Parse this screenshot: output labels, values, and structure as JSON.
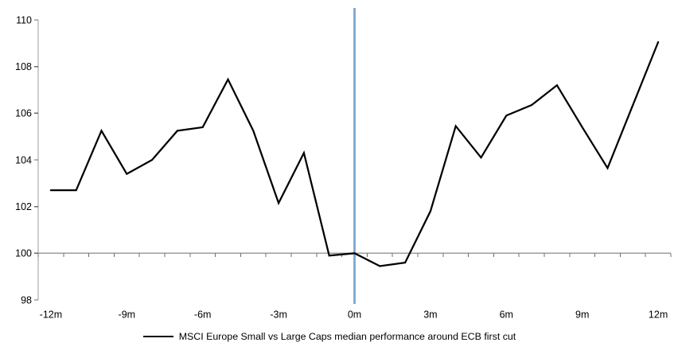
{
  "chart_data": {
    "type": "line",
    "title": "",
    "xlabel": "",
    "ylabel": "",
    "x_months": [
      -12,
      -11,
      -10,
      -9,
      -8,
      -7,
      -6,
      -5,
      -4,
      -3,
      -2,
      -1,
      0,
      1,
      2,
      3,
      4,
      5,
      6,
      7,
      8,
      9,
      10,
      11,
      12
    ],
    "series": [
      {
        "name": "MSCI Europe Small vs Large Caps median performance around ECB first cut",
        "values": [
          102.7,
          102.7,
          105.25,
          103.4,
          104.0,
          105.25,
          105.4,
          107.45,
          105.25,
          102.15,
          104.3,
          99.9,
          100.0,
          99.45,
          99.6,
          101.8,
          105.45,
          104.1,
          105.9,
          106.35,
          107.2,
          105.4,
          103.65,
          106.35,
          109.05
        ]
      }
    ],
    "ylim": [
      98,
      110
    ],
    "y_ticks": [
      98,
      100,
      102,
      104,
      106,
      108,
      110
    ],
    "y_tick_labels": [
      "98",
      "100",
      "102",
      "104",
      "106",
      "108",
      "110"
    ],
    "x_tick_months": [
      -12,
      -9,
      -6,
      -3,
      0,
      3,
      6,
      9,
      12
    ],
    "x_tick_labels": [
      "-12m",
      "-9m",
      "-6m",
      "-3m",
      "0m",
      "3m",
      "6m",
      "9m",
      "12m"
    ],
    "baseline_value": 100,
    "event_line_month": 0,
    "grid": "off",
    "legend_position": "bottom",
    "colors": {
      "series_line": "#000000",
      "event_line": "#7DA6CF",
      "axis_line": "#9d9d9d",
      "tick_mark": "#6b6b6b",
      "tick_text": "#000000"
    }
  },
  "legend": {
    "label": "MSCI Europe Small vs Large Caps median performance around ECB first cut"
  }
}
